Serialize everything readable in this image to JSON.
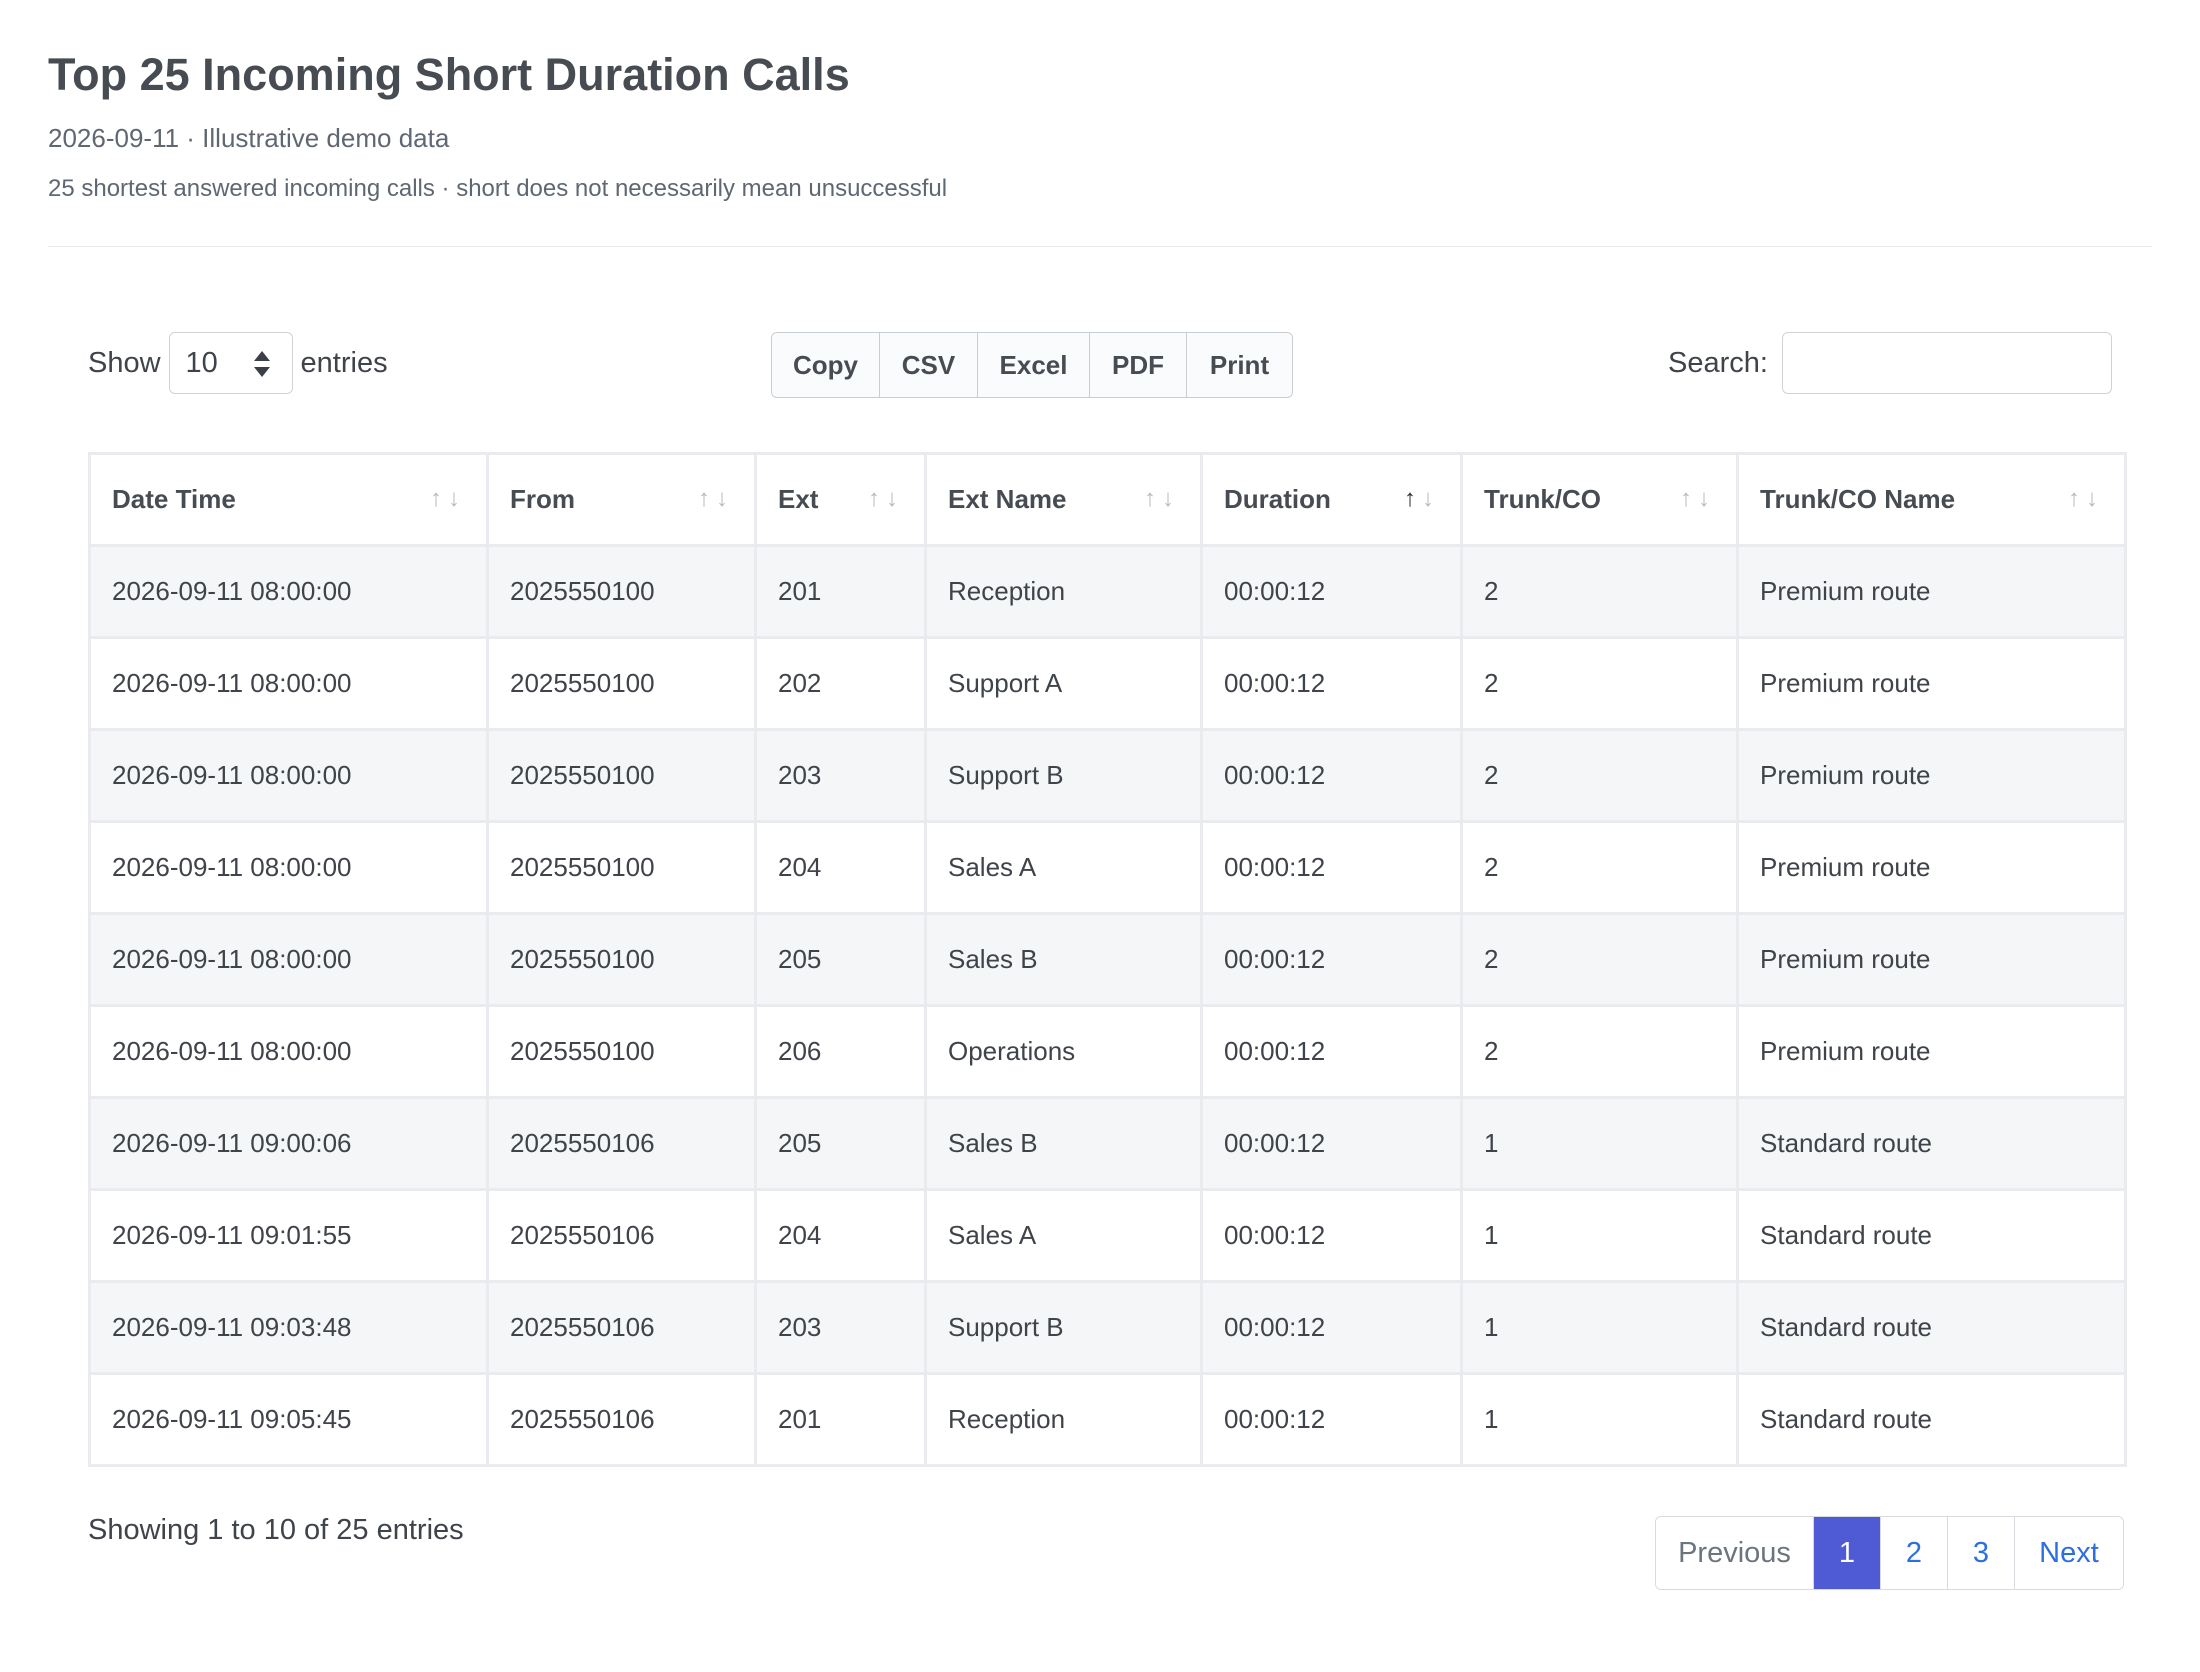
{
  "header": {
    "title": "Top 25 Incoming Short Duration Calls",
    "subtitle": "2026-09-11 · Illustrative demo data",
    "note": "25 shortest answered incoming calls · short does not necessarily mean unsuccessful"
  },
  "controls": {
    "show_label": "Show",
    "entries_label": "entries",
    "page_length": "10",
    "buttons": [
      "Copy",
      "CSV",
      "Excel",
      "PDF",
      "Print"
    ],
    "search_label": "Search:",
    "search_value": ""
  },
  "table": {
    "columns": [
      "Date Time",
      "From",
      "Ext",
      "Ext Name",
      "Duration",
      "Trunk/CO",
      "Trunk/CO Name"
    ],
    "sorted_column": "Duration",
    "sort_direction": "ascending",
    "rows": [
      [
        "2026-09-11 08:00:00",
        "2025550100",
        "201",
        "Reception",
        "00:00:12",
        "2",
        "Premium route"
      ],
      [
        "2026-09-11 08:00:00",
        "2025550100",
        "202",
        "Support A",
        "00:00:12",
        "2",
        "Premium route"
      ],
      [
        "2026-09-11 08:00:00",
        "2025550100",
        "203",
        "Support B",
        "00:00:12",
        "2",
        "Premium route"
      ],
      [
        "2026-09-11 08:00:00",
        "2025550100",
        "204",
        "Sales A",
        "00:00:12",
        "2",
        "Premium route"
      ],
      [
        "2026-09-11 08:00:00",
        "2025550100",
        "205",
        "Sales B",
        "00:00:12",
        "2",
        "Premium route"
      ],
      [
        "2026-09-11 08:00:00",
        "2025550100",
        "206",
        "Operations",
        "00:00:12",
        "2",
        "Premium route"
      ],
      [
        "2026-09-11 09:00:06",
        "2025550106",
        "205",
        "Sales B",
        "00:00:12",
        "1",
        "Standard route"
      ],
      [
        "2026-09-11 09:01:55",
        "2025550106",
        "204",
        "Sales A",
        "00:00:12",
        "1",
        "Standard route"
      ],
      [
        "2026-09-11 09:03:48",
        "2025550106",
        "203",
        "Support B",
        "00:00:12",
        "1",
        "Standard route"
      ],
      [
        "2026-09-11 09:05:45",
        "2025550106",
        "201",
        "Reception",
        "00:00:12",
        "1",
        "Standard route"
      ]
    ]
  },
  "footer": {
    "info": "Showing 1 to 10 of 25 entries",
    "pagination": {
      "previous": "Previous",
      "pages": [
        "1",
        "2",
        "3"
      ],
      "current": "1",
      "next": "Next"
    }
  },
  "colors": {
    "accent": "#4f5bd5",
    "link": "#2d6fe0"
  }
}
